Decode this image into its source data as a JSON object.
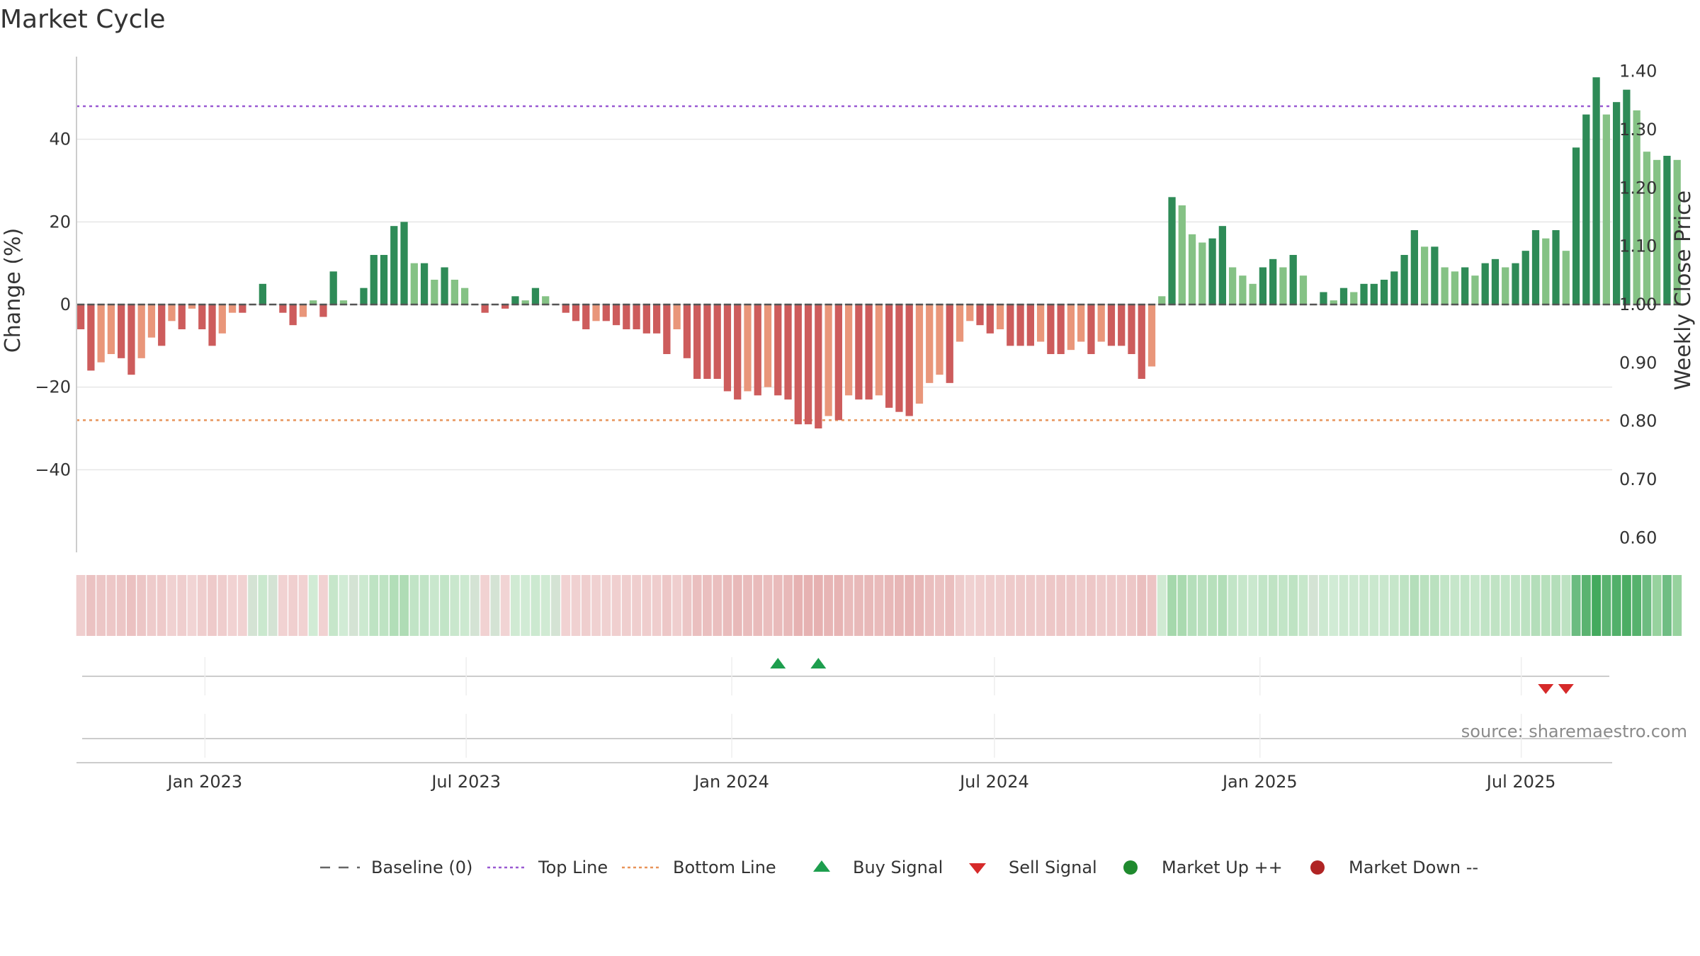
{
  "title": "Market Cycle",
  "source": "source: sharemaestro.com",
  "chart_data": {
    "type": "bar",
    "y_label": "Change (%)",
    "y2_label": "Weekly Close Price",
    "ylim": [
      -60,
      60
    ],
    "y_ticks": [
      40,
      20,
      0,
      -20,
      -40
    ],
    "y_tick_labels": [
      "40",
      "20",
      "0",
      "−20",
      "−40"
    ],
    "y2lim": [
      0.575,
      1.425
    ],
    "y2_ticks": [
      1.4,
      1.3,
      1.2,
      1.1,
      1.0,
      0.9,
      0.8,
      0.7,
      0.6
    ],
    "y2_tick_labels": [
      "1.40",
      "1.30",
      "1.20",
      "1.10",
      "1.00",
      "0.90",
      "0.80",
      "0.70",
      "0.60"
    ],
    "top_line": 48,
    "bottom_line": -28,
    "x_range": [
      "2022-10-04",
      "2025-09-02"
    ],
    "x_ticks": [
      "2023-01-01",
      "2023-07-01",
      "2024-01-01",
      "2024-07-01",
      "2025-01-01",
      "2025-07-01"
    ],
    "x_tick_labels": [
      "Jan 2023",
      "Jul 2023",
      "Jan 2024",
      "Jul 2024",
      "Jan 2025",
      "Jul 2025"
    ],
    "start_week": "2022-10-07",
    "week_interval_days": 7,
    "values": [
      -6,
      -16,
      -14,
      -12,
      -13,
      -17,
      -13,
      -8,
      -10,
      -4,
      -6,
      -1,
      -6,
      -10,
      -7,
      -2,
      -2,
      0,
      5,
      0,
      -2,
      -5,
      -3,
      1,
      -3,
      8,
      1,
      0,
      4,
      12,
      12,
      19,
      20,
      10,
      10,
      6,
      9,
      6,
      4,
      0,
      -2,
      0,
      -1,
      2,
      1,
      4,
      2,
      0,
      -2,
      -4,
      -6,
      -4,
      -4,
      -5,
      -6,
      -6,
      -7,
      -7,
      -12,
      -6,
      -13,
      -18,
      -18,
      -18,
      -21,
      -23,
      -21,
      -22,
      -20,
      -22,
      -23,
      -29,
      -29,
      -30,
      -27,
      -28,
      -22,
      -23,
      -23,
      -22,
      -25,
      -26,
      -27,
      -24,
      -19,
      -17,
      -19,
      -9,
      -4,
      -5,
      -7,
      -6,
      -10,
      -10,
      -10,
      -9,
      -12,
      -12,
      -11,
      -9,
      -12,
      -9,
      -10,
      -10,
      -12,
      -18,
      -15,
      2,
      26,
      24,
      17,
      15,
      16,
      19,
      9,
      7,
      5,
      9,
      11,
      9,
      12,
      7,
      0,
      3,
      1,
      4,
      3,
      5,
      5,
      6,
      8,
      12,
      18,
      14,
      14,
      9,
      8,
      9,
      7,
      10,
      11,
      9,
      10,
      13,
      18,
      16,
      18,
      13,
      38,
      46,
      55,
      46,
      49,
      52,
      47,
      37,
      35,
      36,
      35
    ],
    "signals": [
      {
        "type": "buy",
        "date": "2024-02-02"
      },
      {
        "type": "buy",
        "date": "2024-03-01"
      },
      {
        "type": "sell",
        "date": "2025-07-18"
      },
      {
        "type": "sell",
        "date": "2025-08-01"
      }
    ],
    "legend": [
      {
        "label": "Baseline (0)",
        "kind": "dash",
        "color": "#666666"
      },
      {
        "label": "Top Line",
        "kind": "dot",
        "color": "#9a5ad2"
      },
      {
        "label": "Bottom Line",
        "kind": "dot",
        "color": "#e8945a"
      },
      {
        "label": "Buy Signal",
        "kind": "up",
        "color": "#1d9e4e"
      },
      {
        "label": "Sell Signal",
        "kind": "down",
        "color": "#d62a2a"
      },
      {
        "label": "Market Up ++",
        "kind": "circle",
        "color": "#1f8a2e"
      },
      {
        "label": "Market Down --",
        "kind": "circle",
        "color": "#b02424"
      }
    ],
    "colors": {
      "up_strong": "#2e8b57",
      "up_weak": "#85c285",
      "down_strong": "#cd5c5c",
      "down_weak": "#e9967a",
      "grid": "#e6e6e6",
      "top_line": "#9a5ad2",
      "bottom_line": "#e8945a"
    }
  }
}
